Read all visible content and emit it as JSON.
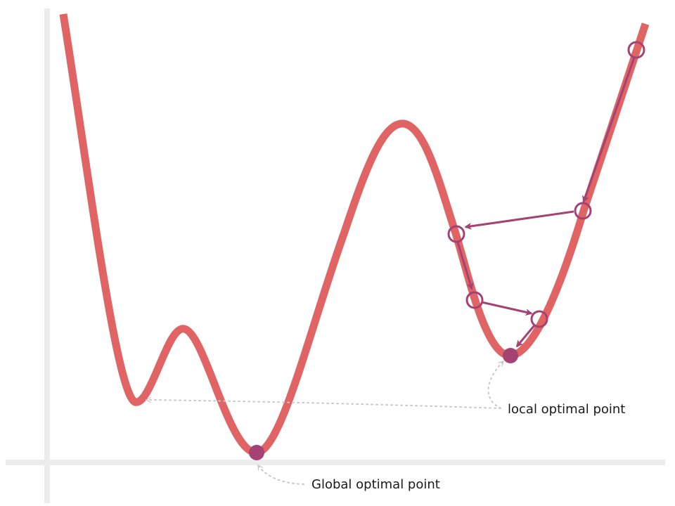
{
  "diagram": {
    "colors": {
      "axis": "#ececec",
      "curve": "#e06464",
      "path": "#a34273",
      "leader": "#c8c8c8",
      "text": "#1a1a1a"
    },
    "labels": {
      "local": "local optimal point",
      "global": "Global optimal point"
    }
  }
}
